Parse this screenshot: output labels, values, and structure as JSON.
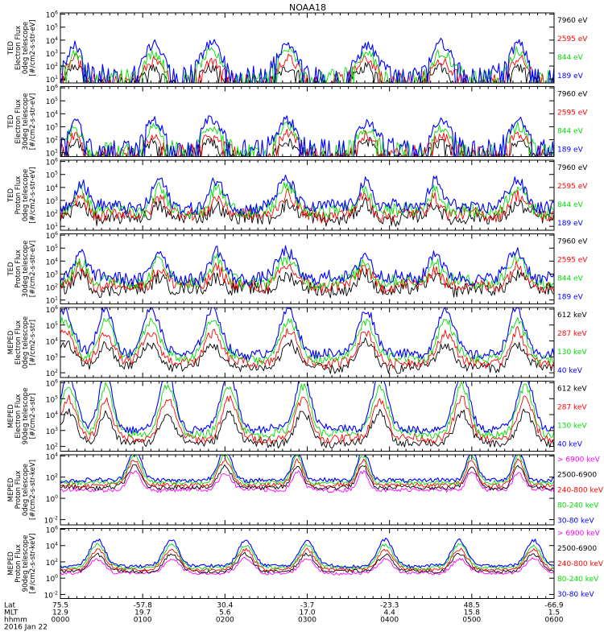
{
  "chart_data": {
    "type": "line",
    "title": "NOAA18",
    "x_domain": [
      0,
      390
    ],
    "panels": [
      {
        "ylabel": [
          "TED",
          "Electron Flux",
          "0deg telescope",
          "[#/cm2-s-str-eV]"
        ],
        "y_exponents": [
          1,
          2,
          3,
          4,
          5,
          6
        ],
        "series": [
          {
            "name": "7960 eV",
            "color": "#000000"
          },
          {
            "name": "2595 eV",
            "color": "#ff0000"
          },
          {
            "name": "844 eV",
            "color": "#00dd00"
          },
          {
            "name": "189 eV",
            "color": "#0000ff"
          }
        ],
        "bursts": [
          [
            0.18,
            1.5
          ],
          [
            1.13,
            2.0
          ],
          [
            1.83,
            3.0
          ],
          [
            2.76,
            2.5
          ],
          [
            3.73,
            2.5
          ],
          [
            4.63,
            2.5
          ],
          [
            5.57,
            2.0
          ]
        ],
        "base_exp": 0.8,
        "burst_amp": 2.0,
        "ripple": 0.8,
        "spiky": true
      },
      {
        "ylabel": [
          "TED",
          "Electron Flux",
          "30deg telescope",
          "[#/cm2-s-str-eV]"
        ],
        "y_exponents": [
          1,
          2,
          3,
          4,
          5,
          6
        ],
        "series": [
          {
            "name": "7960 eV",
            "color": "#000000"
          },
          {
            "name": "2595 eV",
            "color": "#ff0000"
          },
          {
            "name": "844 eV",
            "color": "#00dd00"
          },
          {
            "name": "189 eV",
            "color": "#0000ff"
          }
        ],
        "bursts": [
          [
            0.18,
            1.5
          ],
          [
            1.13,
            2.0
          ],
          [
            1.83,
            3.0
          ],
          [
            2.76,
            2.5
          ],
          [
            3.73,
            2.5
          ],
          [
            4.63,
            2.5
          ],
          [
            5.57,
            2.0
          ]
        ],
        "base_exp": 0.8,
        "burst_amp": 1.8,
        "ripple": 0.8,
        "spiky": true
      },
      {
        "ylabel": [
          "TED",
          "Proton Flux",
          "0deg telescope",
          "[#/cm2-s-str-eV]"
        ],
        "y_exponents": [
          1,
          2,
          3,
          4,
          5,
          6
        ],
        "series": [
          {
            "name": "7960 eV",
            "color": "#000000"
          },
          {
            "name": "2595 eV",
            "color": "#ff0000"
          },
          {
            "name": "844 eV",
            "color": "#00dd00"
          },
          {
            "name": "189 eV",
            "color": "#0000ff"
          }
        ],
        "bursts": [
          [
            0.25,
            1.5
          ],
          [
            1.2,
            1.5
          ],
          [
            1.9,
            1.5
          ],
          [
            2.75,
            2.5
          ],
          [
            3.7,
            1.5
          ],
          [
            4.55,
            1.5
          ],
          [
            5.55,
            2.5
          ]
        ],
        "base_exp": 1.6,
        "burst_amp": 2.0,
        "ripple": 1.0,
        "spiky": false
      },
      {
        "ylabel": [
          "TED",
          "Proton Flux",
          "30deg telescope",
          "[#/cm2-s-str-eV]"
        ],
        "y_exponents": [
          1,
          2,
          3,
          4,
          5,
          6
        ],
        "series": [
          {
            "name": "7960 eV",
            "color": "#000000"
          },
          {
            "name": "2595 eV",
            "color": "#ff0000"
          },
          {
            "name": "844 eV",
            "color": "#00dd00"
          },
          {
            "name": "189 eV",
            "color": "#0000ff"
          }
        ],
        "bursts": [
          [
            0.25,
            1.5
          ],
          [
            1.2,
            1.5
          ],
          [
            1.9,
            1.5
          ],
          [
            2.75,
            2.5
          ],
          [
            3.7,
            1.5
          ],
          [
            4.55,
            1.5
          ],
          [
            5.55,
            2.5
          ]
        ],
        "base_exp": 1.8,
        "burst_amp": 2.0,
        "ripple": 1.0,
        "spiky": false
      },
      {
        "ylabel": [
          "MEPED",
          "Electron Flux",
          "0deg telescope",
          "[#/cm2-s-str]"
        ],
        "y_exponents": [
          2,
          3,
          4,
          5,
          6
        ],
        "series": [
          {
            "name": "612 keV",
            "color": "#000000"
          },
          {
            "name": "287 keV",
            "color": "#ff0000"
          },
          {
            "name": "130 keV",
            "color": "#00dd00"
          },
          {
            "name": "40 keV",
            "color": "#0000ff"
          }
        ],
        "bursts": [
          [
            0.05,
            3.0
          ],
          [
            0.55,
            2.0
          ],
          [
            1.1,
            2.5
          ],
          [
            1.85,
            2.5
          ],
          [
            2.78,
            2.5
          ],
          [
            3.72,
            2.5
          ],
          [
            4.68,
            2.5
          ],
          [
            5.55,
            2.0
          ]
        ],
        "base_exp": 2.3,
        "burst_amp": 2.8,
        "ripple": 0.6,
        "spiky": false
      },
      {
        "ylabel": [
          "MEPED",
          "Electron Flux",
          "90deg telescope",
          "[#/cm2-s-str]"
        ],
        "y_exponents": [
          2,
          3,
          4,
          5,
          6
        ],
        "series": [
          {
            "name": "612 keV",
            "color": "#000000"
          },
          {
            "name": "287 keV",
            "color": "#ff0000"
          },
          {
            "name": "130 keV",
            "color": "#00dd00"
          },
          {
            "name": "40 keV",
            "color": "#0000ff"
          }
        ],
        "bursts": [
          [
            0.1,
            2.0
          ],
          [
            0.55,
            1.5
          ],
          [
            1.3,
            2.0
          ],
          [
            2.05,
            2.0
          ],
          [
            2.95,
            2.0
          ],
          [
            3.88,
            2.0
          ],
          [
            4.88,
            2.0
          ],
          [
            5.65,
            2.0
          ]
        ],
        "base_exp": 2.2,
        "burst_amp": 3.5,
        "ripple": 0.5,
        "spiky": false
      },
      {
        "ylabel": [
          "MEPED",
          "Proton Flux",
          "0deg telescope",
          "[#/cm2-s-str-keV]"
        ],
        "y_exponents": [
          -2,
          0,
          2,
          4
        ],
        "series": [
          {
            "name": "> 6900 keV",
            "color": "#ff00ff"
          },
          {
            "name": "2500-6900",
            "color": "#000000"
          },
          {
            "name": "240-800 keV",
            "color": "#ff0000"
          },
          {
            "name": "80-240 keV",
            "color": "#00dd00"
          },
          {
            "name": "30-80 keV",
            "color": "#0000ff"
          }
        ],
        "bursts": [
          [
            0.9,
            1.5
          ],
          [
            2.0,
            1.5
          ],
          [
            2.88,
            1.0
          ],
          [
            3.68,
            1.0
          ],
          [
            5.0,
            1.0
          ],
          [
            5.57,
            1.0
          ]
        ],
        "base_exp": 0.8,
        "burst_amp": 3.0,
        "ripple": 0.4,
        "spiky": false
      },
      {
        "ylabel": [
          "MEPED",
          "Proton Flux",
          "90deg telescope",
          "[#/cm2-s-str-keV]"
        ],
        "y_exponents": [
          -2,
          0,
          2,
          4,
          6
        ],
        "series": [
          {
            "name": "> 6900 keV",
            "color": "#ff00ff"
          },
          {
            "name": "2500-6900",
            "color": "#000000"
          },
          {
            "name": "240-800 keV",
            "color": "#ff0000"
          },
          {
            "name": "80-240 keV",
            "color": "#00dd00"
          },
          {
            "name": "30-80 keV",
            "color": "#0000ff"
          }
        ],
        "bursts": [
          [
            0.45,
            2.0
          ],
          [
            1.35,
            2.0
          ],
          [
            2.25,
            2.0
          ],
          [
            3.0,
            2.0
          ],
          [
            3.95,
            2.0
          ],
          [
            4.85,
            2.0
          ],
          [
            5.75,
            2.0
          ]
        ],
        "base_exp": 0.6,
        "burst_amp": 3.2,
        "ripple": 0.4,
        "spiky": false
      }
    ],
    "x_axis": {
      "row_labels": [
        "Lat",
        "MLT",
        "hhmm",
        "2016 Jan 22"
      ],
      "ticks": [
        {
          "lat": "75.5",
          "mlt": "12.9",
          "hhmm": "0000",
          "pos": 0
        },
        {
          "lat": "-57.8",
          "mlt": "19.7",
          "hhmm": "0100",
          "pos": 1
        },
        {
          "lat": "30.4",
          "mlt": "5.6",
          "hhmm": "0200",
          "pos": 2
        },
        {
          "lat": "-3.7",
          "mlt": "17.0",
          "hhmm": "0300",
          "pos": 3
        },
        {
          "lat": "-23.3",
          "mlt": "4.4",
          "hhmm": "0400",
          "pos": 4
        },
        {
          "lat": "48.5",
          "mlt": "15.8",
          "hhmm": "0500",
          "pos": 5
        },
        {
          "lat": "-66.9",
          "mlt": "1.5",
          "hhmm": "0600",
          "pos": 6
        }
      ]
    }
  }
}
